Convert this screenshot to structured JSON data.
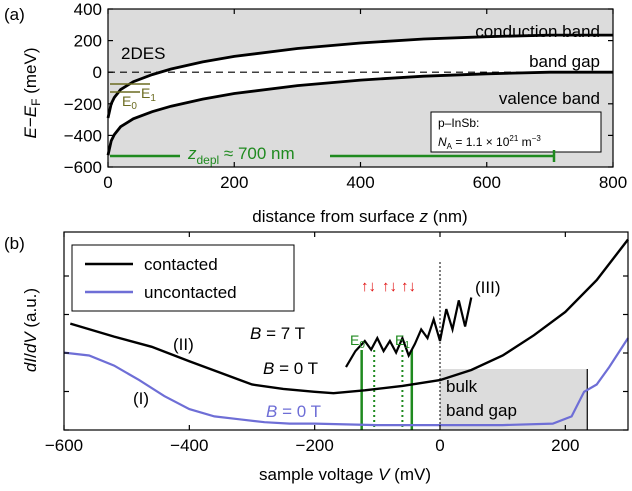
{
  "chart_data": [
    {
      "panel_label": "(a)",
      "type": "line",
      "xlabel": "distance from surface z (nm)",
      "ylabel": "E−E_F (meV)",
      "xlim": [
        0,
        800
      ],
      "ylim": [
        -600,
        400
      ],
      "xticks": [
        "0",
        "200",
        "400",
        "600",
        "800"
      ],
      "yticks": [
        "400",
        "200",
        "0",
        "−200",
        "−400",
        "−600"
      ],
      "x": [
        0,
        5,
        10,
        20,
        40,
        70,
        100,
        150,
        200,
        300,
        400,
        500,
        600,
        700,
        800
      ],
      "series": [
        {
          "name": "conduction band edge",
          "values": [
            -290,
            -200,
            -160,
            -110,
            -60,
            -15,
            20,
            65,
            100,
            150,
            185,
            210,
            225,
            235,
            235
          ]
        },
        {
          "name": "valence band edge",
          "values": [
            -525,
            -435,
            -395,
            -345,
            -295,
            -250,
            -215,
            -170,
            -135,
            -85,
            -50,
            -25,
            -10,
            0,
            0
          ]
        }
      ],
      "reference_lines": [
        {
          "y": 0,
          "style": "dashed"
        }
      ],
      "region_labels": [
        "conduction band",
        "band gap",
        "valence band",
        "2DES"
      ],
      "level_labels": [
        "E0",
        "E1"
      ],
      "info_box": {
        "line1": "p–InSb:",
        "line2": "N_A = 1.1 × 10^21 m^−3"
      },
      "depletion": {
        "label": "z_depl ≈ 700 nm",
        "from": 0,
        "to": 700
      }
    },
    {
      "panel_label": "(b)",
      "type": "line",
      "xlabel": "sample voltage V (mV)",
      "ylabel": "dI/dV (a.u.)",
      "xlim": [
        -600,
        300
      ],
      "xticks": [
        "−600",
        "−400",
        "−200",
        "0",
        "200"
      ],
      "legend": {
        "position": "top-left",
        "entries": [
          "contacted",
          "uncontacted"
        ]
      },
      "series": [
        {
          "name": "contacted",
          "field": "B = 0 T",
          "x": [
            -590,
            -520,
            -460,
            -400,
            -350,
            -300,
            -250,
            -200,
            -170,
            -120,
            -60,
            0,
            50,
            100,
            150,
            200,
            250,
            300
          ],
          "values": [
            0.72,
            0.63,
            0.56,
            0.46,
            0.38,
            0.3,
            0.27,
            0.25,
            0.24,
            0.26,
            0.29,
            0.33,
            0.4,
            0.5,
            0.64,
            0.8,
            1.02,
            1.3
          ]
        },
        {
          "name": "contacted",
          "field": "B = 7 T",
          "x": [
            -150,
            -135,
            -120,
            -110,
            -100,
            -90,
            -80,
            -70,
            -60,
            -50,
            -40,
            -30,
            -20,
            -10,
            0,
            10,
            20,
            30,
            40,
            50
          ],
          "values": [
            0.42,
            0.53,
            0.6,
            0.54,
            0.62,
            0.53,
            0.6,
            0.52,
            0.62,
            0.5,
            0.58,
            0.68,
            0.62,
            0.75,
            0.6,
            0.82,
            0.68,
            0.88,
            0.7,
            0.9
          ]
        },
        {
          "name": "uncontacted",
          "field": "B = 0 T",
          "x": [
            -600,
            -560,
            -520,
            -480,
            -440,
            -400,
            -360,
            -320,
            -280,
            -240,
            -200,
            -100,
            0,
            100,
            180,
            210,
            230,
            250,
            270,
            300
          ],
          "values": [
            0.52,
            0.5,
            0.43,
            0.33,
            0.22,
            0.13,
            0.08,
            0.06,
            0.04,
            0.03,
            0.03,
            0.02,
            0.02,
            0.02,
            0.03,
            0.08,
            0.25,
            0.3,
            0.42,
            0.62
          ]
        }
      ],
      "labels": {
        "B7": "B = 7 T",
        "B0_black": "B = 0 T",
        "B0_blue": "B = 0 T",
        "I": "(I)",
        "II": "(II)",
        "III": "(III)",
        "E0": "E0",
        "E1": "E1"
      },
      "shaded_region": {
        "label_line1": "bulk",
        "label_line2": "band gap",
        "from": 0,
        "to": 235
      },
      "level_lines": [
        {
          "label": "E0",
          "x": -125,
          "style": "solid"
        },
        {
          "label": "",
          "x": -105,
          "style": "dotted"
        },
        {
          "label": "",
          "x": -60,
          "style": "dotted"
        },
        {
          "label": "E1",
          "x": -45,
          "style": "solid"
        }
      ],
      "reference_lines": [
        {
          "x": 0,
          "style": "dotted"
        }
      ],
      "spin_arrows": [
        "↑↓",
        "↑↓",
        "↑↓"
      ]
    }
  ],
  "colors": {
    "band_fill": "#dcdcdc",
    "green": "#1f8a1f",
    "blue": "#6e6ed6",
    "olive": "#6b6b20",
    "red": "#e01010"
  }
}
